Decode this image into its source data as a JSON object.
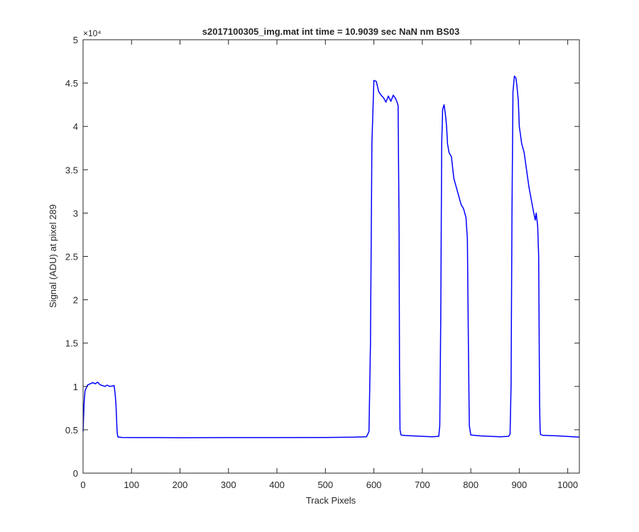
{
  "chart_data": {
    "type": "line",
    "title": "s2017100305_img.mat int time = 10.9039 sec  NaN nm BS03",
    "xlabel": "Track Pixels",
    "ylabel": "Signal (ADU) at pixel 289",
    "xlim": [
      0,
      1024
    ],
    "ylim": [
      0,
      50000
    ],
    "x_ticks": [
      0,
      100,
      200,
      300,
      400,
      500,
      600,
      700,
      800,
      900,
      1000
    ],
    "x_tick_labels": [
      "0",
      "100",
      "200",
      "300",
      "400",
      "500",
      "600",
      "700",
      "800",
      "900",
      "1000"
    ],
    "y_ticks": [
      0,
      5000,
      10000,
      15000,
      20000,
      25000,
      30000,
      35000,
      40000,
      45000,
      50000
    ],
    "y_tick_labels": [
      "0",
      "0.5",
      "1",
      "1.5",
      "2",
      "2.5",
      "3",
      "3.5",
      "4",
      "4.5",
      "5"
    ],
    "y_exponent": "×10⁴",
    "grid": false,
    "series": [
      {
        "color": "#0000ff",
        "x": [
          0,
          2,
          4,
          7,
          10,
          15,
          20,
          25,
          30,
          35,
          40,
          45,
          50,
          55,
          60,
          64,
          66,
          67,
          68,
          69,
          70,
          71,
          72,
          73,
          75,
          80,
          100,
          150,
          200,
          300,
          400,
          500,
          560,
          585,
          590,
          593,
          596,
          600,
          605,
          610,
          615,
          620,
          625,
          630,
          635,
          640,
          645,
          648,
          650,
          652,
          653,
          654,
          656,
          660,
          680,
          700,
          720,
          734,
          736,
          738,
          740,
          742,
          745,
          748,
          750,
          752,
          755,
          760,
          765,
          770,
          775,
          780,
          785,
          790,
          793,
          795,
          797,
          800,
          820,
          840,
          860,
          878,
          881,
          883,
          885,
          887,
          890,
          893,
          895,
          898,
          900,
          905,
          910,
          915,
          920,
          925,
          930,
          933,
          935,
          938,
          940,
          941,
          942,
          943,
          944,
          946,
          950,
          980,
          1024
        ],
        "y": [
          4800,
          8000,
          9500,
          9900,
          10200,
          10300,
          10450,
          10300,
          10500,
          10200,
          10100,
          10000,
          10150,
          10000,
          10050,
          10100,
          9200,
          8600,
          7800,
          6500,
          5000,
          4400,
          4180,
          4150,
          4150,
          4120,
          4100,
          4100,
          4080,
          4100,
          4100,
          4120,
          4150,
          4200,
          4800,
          15000,
          38000,
          45300,
          45200,
          44000,
          43600,
          43300,
          42800,
          43500,
          42900,
          43600,
          43200,
          42800,
          42400,
          28000,
          12000,
          5000,
          4400,
          4350,
          4300,
          4250,
          4200,
          4250,
          5500,
          18000,
          38000,
          42000,
          42500,
          41200,
          40000,
          38000,
          37000,
          36500,
          34000,
          33000,
          32000,
          31000,
          30500,
          29500,
          27000,
          15000,
          5500,
          4400,
          4300,
          4250,
          4200,
          4250,
          4500,
          10000,
          30000,
          44000,
          45800,
          45600,
          44800,
          43000,
          40000,
          38000,
          37000,
          35000,
          33000,
          31500,
          30000,
          29200,
          30000,
          28500,
          25000,
          17000,
          8000,
          5000,
          4450,
          4400,
          4350,
          4300,
          4150
        ]
      }
    ]
  }
}
